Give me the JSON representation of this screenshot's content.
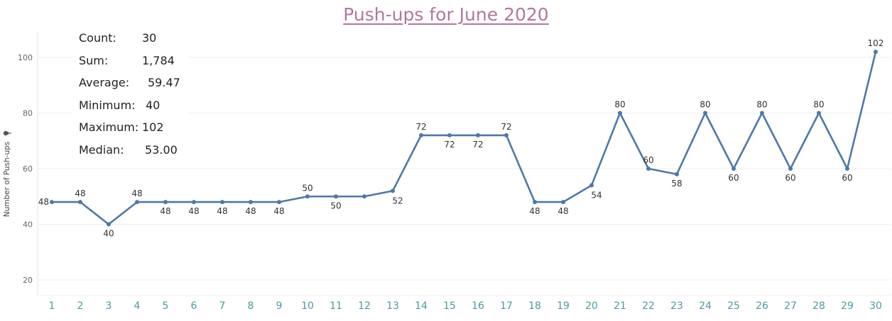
{
  "chart_data": {
    "type": "line",
    "title": "Push-ups for June 2020",
    "xlabel": "",
    "ylabel": "Number of Push-ups",
    "x": [
      1,
      2,
      3,
      4,
      5,
      6,
      7,
      8,
      9,
      10,
      11,
      12,
      13,
      14,
      15,
      16,
      17,
      18,
      19,
      20,
      21,
      22,
      23,
      24,
      25,
      26,
      27,
      28,
      29,
      30
    ],
    "series": [
      {
        "values": [
          48,
          48,
          40,
          48,
          48,
          48,
          48,
          48,
          48,
          50,
          50,
          50,
          52,
          72,
          72,
          72,
          72,
          48,
          48,
          54,
          80,
          60,
          58,
          80,
          60,
          80,
          60,
          80,
          60,
          102
        ]
      }
    ],
    "data_labels": [
      "48",
      "48",
      "40",
      "48",
      "48",
      "48",
      "48",
      "48",
      "48",
      "50",
      "50",
      "",
      "52",
      "72",
      "72",
      "72",
      "72",
      "48",
      "48",
      "54",
      "80",
      "60",
      "58",
      "80",
      "60",
      "80",
      "60",
      "80",
      "60",
      "102"
    ],
    "yticks": [
      20,
      40,
      60,
      80,
      100
    ],
    "ylim": [
      15,
      112
    ],
    "grid": true,
    "color": "#4e79a7",
    "axis_icon": "pin-icon"
  },
  "stats": [
    {
      "label": "Count:",
      "value": "30"
    },
    {
      "label": "Sum:",
      "value": "1,784"
    },
    {
      "label": "Average:",
      "value": "59.47"
    },
    {
      "label": "Minimum:",
      "value": "40"
    },
    {
      "label": "Maximum:",
      "value": "102"
    },
    {
      "label": "Median:",
      "value": "53.00"
    }
  ]
}
